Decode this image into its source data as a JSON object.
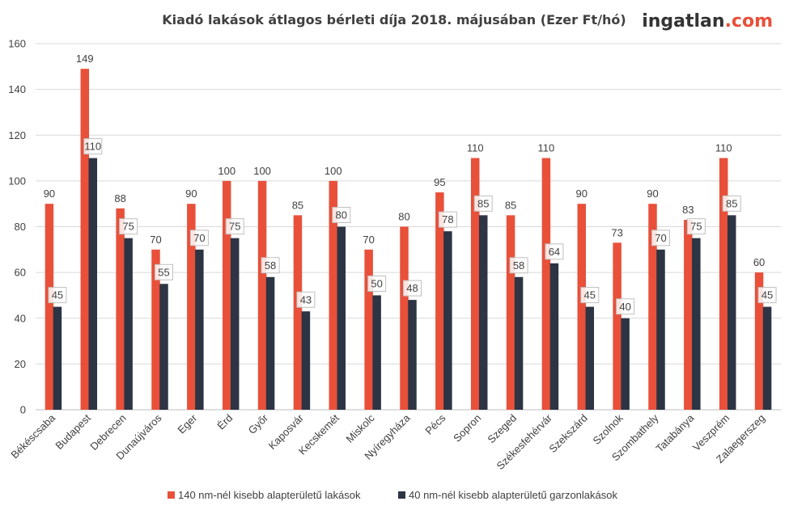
{
  "chart_data": {
    "type": "bar",
    "title": "Kiadó lakások átlagos bérleti díja 2018. májusában (Ezer Ft/hó)",
    "brand": "ingatlan.com",
    "categories": [
      "Békéscsaba",
      "Budapest",
      "Debrecen",
      "Dunaújváros",
      "Eger",
      "Érd",
      "Győr",
      "Kaposvár",
      "Kecskemét",
      "Miskolc",
      "Nyíregyháza",
      "Pécs",
      "Sopron",
      "Szeged",
      "Székesfehérvár",
      "Szekszárd",
      "Szolnok",
      "Szombathely",
      "Tatabánya",
      "Veszprém",
      "Zalaegerszeg"
    ],
    "series": [
      {
        "name": "140 nm-nél kisebb alapterületű lakások",
        "color": "#e8503a",
        "values": [
          90,
          149,
          88,
          70,
          90,
          100,
          100,
          85,
          100,
          70,
          80,
          95,
          110,
          85,
          110,
          90,
          73,
          90,
          83,
          110,
          60
        ]
      },
      {
        "name": "40 nm-nél kisebb alapterületű garzonlakások",
        "color": "#2d3444",
        "values": [
          45,
          110,
          75,
          55,
          70,
          75,
          58,
          43,
          80,
          50,
          48,
          78,
          85,
          58,
          64,
          45,
          40,
          70,
          75,
          85,
          45
        ]
      }
    ],
    "ylim": [
      0,
      160
    ],
    "yticks": [
      0,
      20,
      40,
      60,
      80,
      100,
      120,
      140,
      160
    ],
    "grid": true,
    "legend": "bottom",
    "xlabel": "",
    "ylabel": ""
  }
}
